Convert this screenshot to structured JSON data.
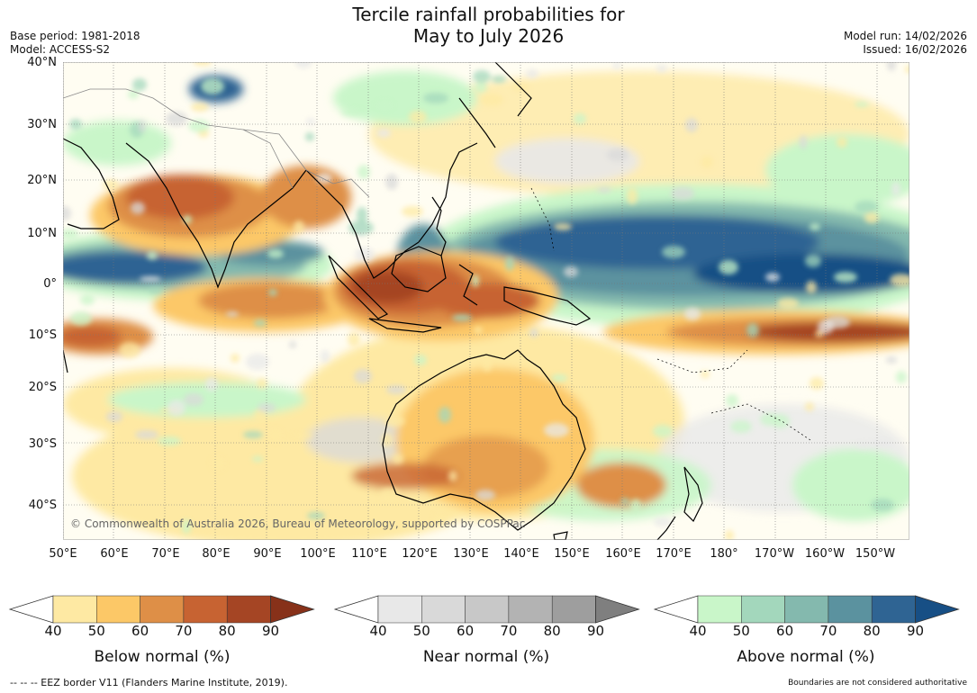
{
  "title": {
    "line1": "Tercile rainfall probabilities for",
    "line2": "May to July 2026"
  },
  "meta": {
    "base_period": "Base period: 1981-2018",
    "model": "Model: ACCESS-S2",
    "model_run": "Model run: 14/02/2026",
    "issued": "Issued: 16/02/2026"
  },
  "map": {
    "copyright": "© Commonwealth of Australia 2026, Bureau of Meteorology, supported by COSPPac",
    "lat_labels": [
      "40°N",
      "30°N",
      "20°N",
      "10°N",
      "0°",
      "10°S",
      "20°S",
      "30°S",
      "40°S"
    ],
    "lon_labels": [
      "50°E",
      "60°E",
      "70°E",
      "80°E",
      "90°E",
      "100°E",
      "110°E",
      "120°E",
      "130°E",
      "140°E",
      "150°E",
      "160°E",
      "170°E",
      "180°",
      "170°W",
      "160°W",
      "150°W"
    ]
  },
  "legends": {
    "below": {
      "label": "Below normal (%)",
      "ticks": [
        "40",
        "50",
        "60",
        "70",
        "80",
        "90"
      ],
      "colors": [
        "#ffffff",
        "#fee9a3",
        "#fcc867",
        "#de8f47",
        "#c76332",
        "#a54524",
        "#873119"
      ]
    },
    "near": {
      "label": "Near normal (%)",
      "ticks": [
        "40",
        "50",
        "60",
        "70",
        "80",
        "90"
      ],
      "colors": [
        "#ffffff",
        "#e8e8e8",
        "#d9d9d9",
        "#c8c8c8",
        "#b3b3b3",
        "#9e9e9e",
        "#7f7f7f"
      ]
    },
    "above": {
      "label": "Above normal (%)",
      "ticks": [
        "40",
        "50",
        "60",
        "70",
        "80",
        "90"
      ],
      "colors": [
        "#ffffff",
        "#c9f6c9",
        "#a3d7bc",
        "#84b9ae",
        "#5b929f",
        "#2f6493",
        "#174f85"
      ]
    }
  },
  "footer": {
    "eez": "-- -- -- EEZ border V11 (Flanders Marine Institute, 2019).",
    "disclaimer": "Boundaries are not considered authoritative"
  }
}
